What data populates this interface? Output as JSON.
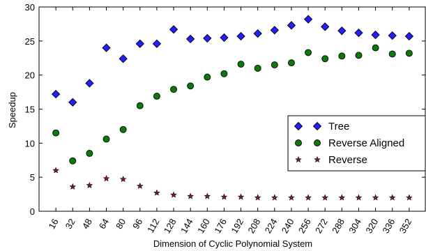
{
  "chart_data": {
    "type": "scatter",
    "xlabel": "Dimension of Cyclic Polynomial System",
    "ylabel": "Speedup",
    "ylim": [
      0,
      30
    ],
    "yticks": [
      0,
      5,
      10,
      15,
      20,
      25,
      30
    ],
    "grid": false,
    "legend_placement": "right",
    "categories": [
      "16",
      "32",
      "48",
      "64",
      "80",
      "96",
      "112",
      "128",
      "144",
      "160",
      "176",
      "192",
      "208",
      "224",
      "240",
      "256",
      "272",
      "288",
      "304",
      "320",
      "336",
      "352"
    ],
    "series": [
      {
        "name": "Tree",
        "marker": "diamond",
        "color": "#1f1fff",
        "values": [
          17.2,
          16.0,
          18.8,
          24.0,
          22.4,
          24.6,
          24.6,
          26.7,
          25.3,
          25.4,
          25.5,
          25.7,
          26.1,
          26.6,
          27.3,
          28.2,
          27.1,
          26.5,
          26.2,
          25.9,
          25.8,
          25.7
        ]
      },
      {
        "name": "Reverse Aligned",
        "marker": "circle",
        "color": "#0a7a0a",
        "values": [
          11.5,
          7.4,
          8.5,
          10.6,
          12.0,
          15.5,
          16.9,
          17.9,
          18.4,
          19.7,
          20.2,
          21.6,
          21.0,
          21.5,
          21.8,
          23.3,
          22.4,
          22.8,
          22.9,
          24.0,
          23.1,
          23.2
        ]
      },
      {
        "name": "Reverse",
        "marker": "star",
        "color": "#8b1a1a",
        "values": [
          6.0,
          3.6,
          3.8,
          4.8,
          4.7,
          3.7,
          2.7,
          2.4,
          2.2,
          2.2,
          2.1,
          2.1,
          2.0,
          2.0,
          2.0,
          2.0,
          2.0,
          2.0,
          2.0,
          2.0,
          2.0,
          2.0
        ]
      }
    ]
  }
}
